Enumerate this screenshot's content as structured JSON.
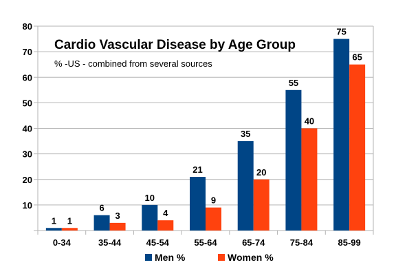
{
  "chart_data": {
    "type": "bar",
    "title": "Cardio Vascular Disease by Age Group",
    "subtitle": "% -US - combined from several sources",
    "categories": [
      "0-34",
      "35-44",
      "45-54",
      "55-64",
      "65-74",
      "75-84",
      "85-99"
    ],
    "series": [
      {
        "name": "Men %",
        "values": [
          1,
          6,
          10,
          21,
          35,
          55,
          75
        ],
        "color": "#004586"
      },
      {
        "name": "Women %",
        "values": [
          1,
          3,
          4,
          9,
          20,
          40,
          65
        ],
        "color": "#ff420e"
      }
    ],
    "ylim": [
      0,
      80
    ],
    "yticks": [
      0,
      10,
      20,
      30,
      40,
      50,
      60,
      70,
      80
    ],
    "ytick_labels": [
      "",
      "10",
      "20",
      "30",
      "40",
      "50",
      "60",
      "70",
      "80"
    ],
    "grid": true,
    "data_labels": true,
    "legend_position": "bottom"
  }
}
